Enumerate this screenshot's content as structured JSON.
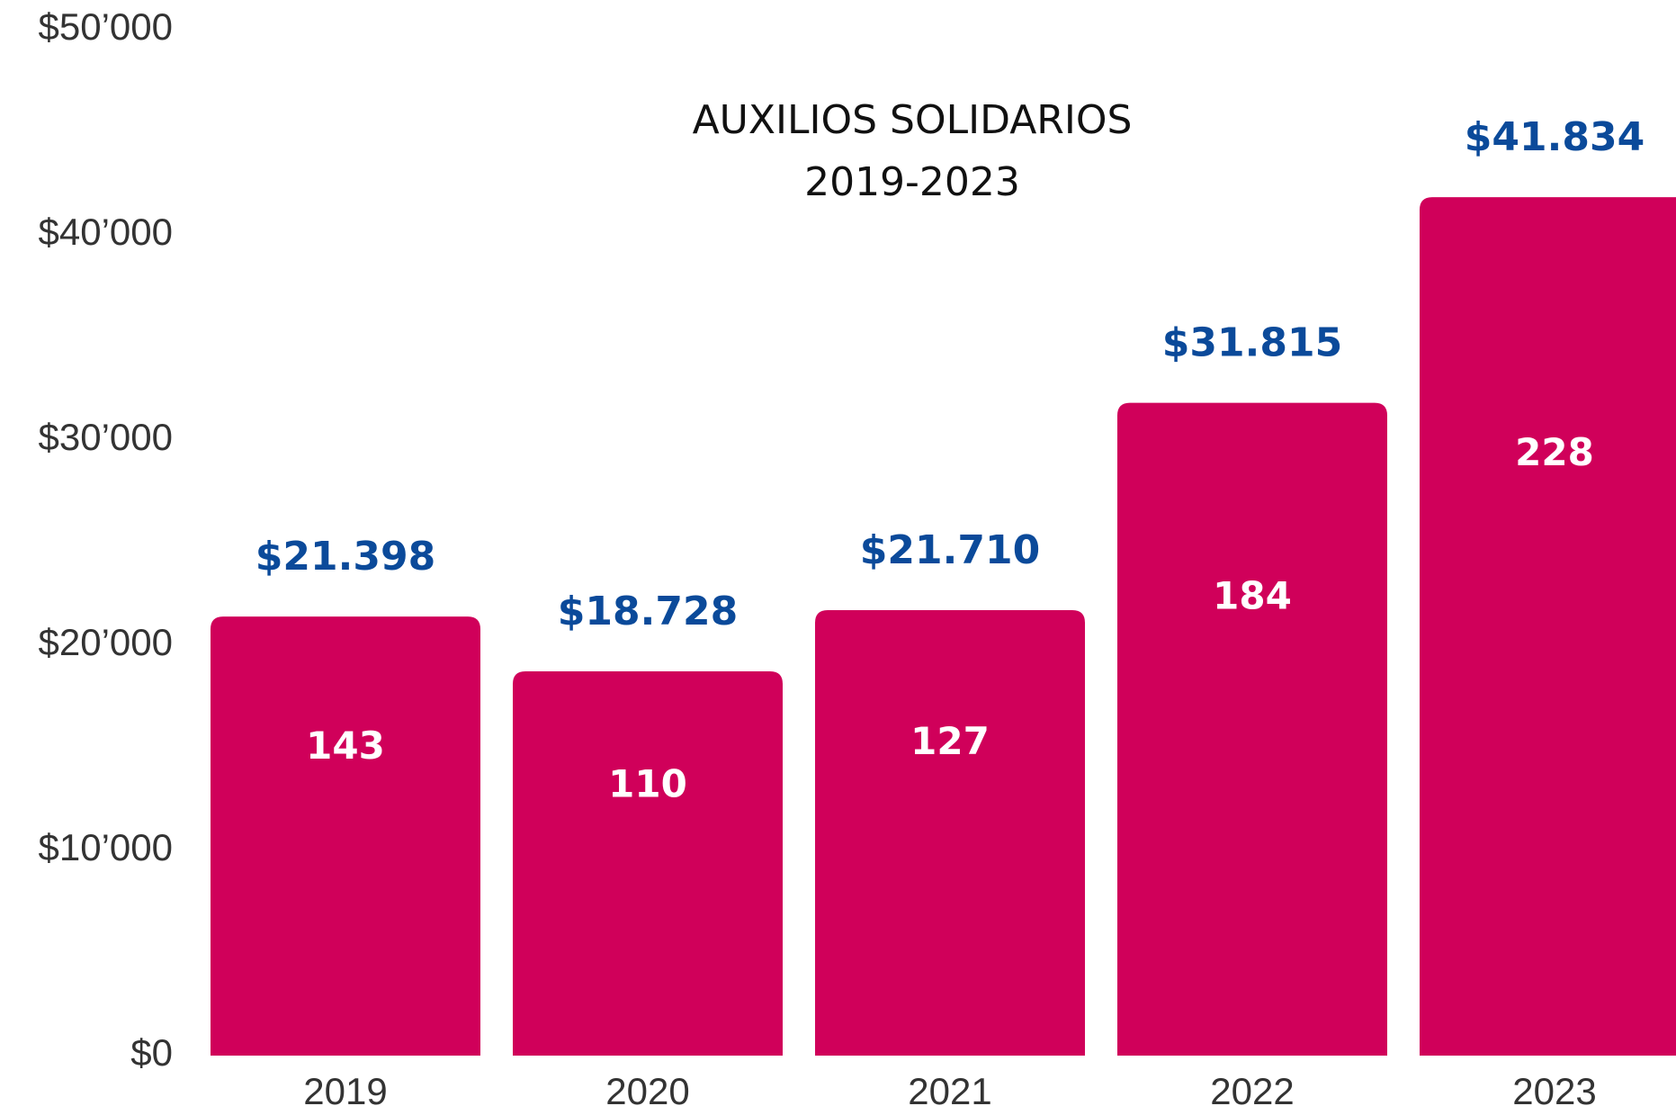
{
  "chart_data": {
    "type": "bar",
    "title": "AUXILIOS SOLIDARIOS",
    "subtitle": "2019-2023",
    "categories": [
      "2019",
      "2020",
      "2021",
      "2022",
      "2023"
    ],
    "values": [
      21398,
      18728,
      21710,
      31815,
      41834
    ],
    "value_labels": [
      "$21.398",
      "$18.728",
      "$21.710",
      "$31.815",
      "$41.834"
    ],
    "counts": [
      143,
      110,
      127,
      184,
      228
    ],
    "color": "#d0005a",
    "label_color": "#0b4a9a",
    "ylim": [
      0,
      50000
    ],
    "yticks": [
      {
        "value": 0,
        "label": "$0"
      },
      {
        "value": 10000,
        "label": "$10’000"
      },
      {
        "value": 20000,
        "label": "$20’000"
      },
      {
        "value": 30000,
        "label": "$30’000"
      },
      {
        "value": 40000,
        "label": "$40’000"
      },
      {
        "value": 50000,
        "label": "$50’000"
      }
    ],
    "grid": false
  }
}
